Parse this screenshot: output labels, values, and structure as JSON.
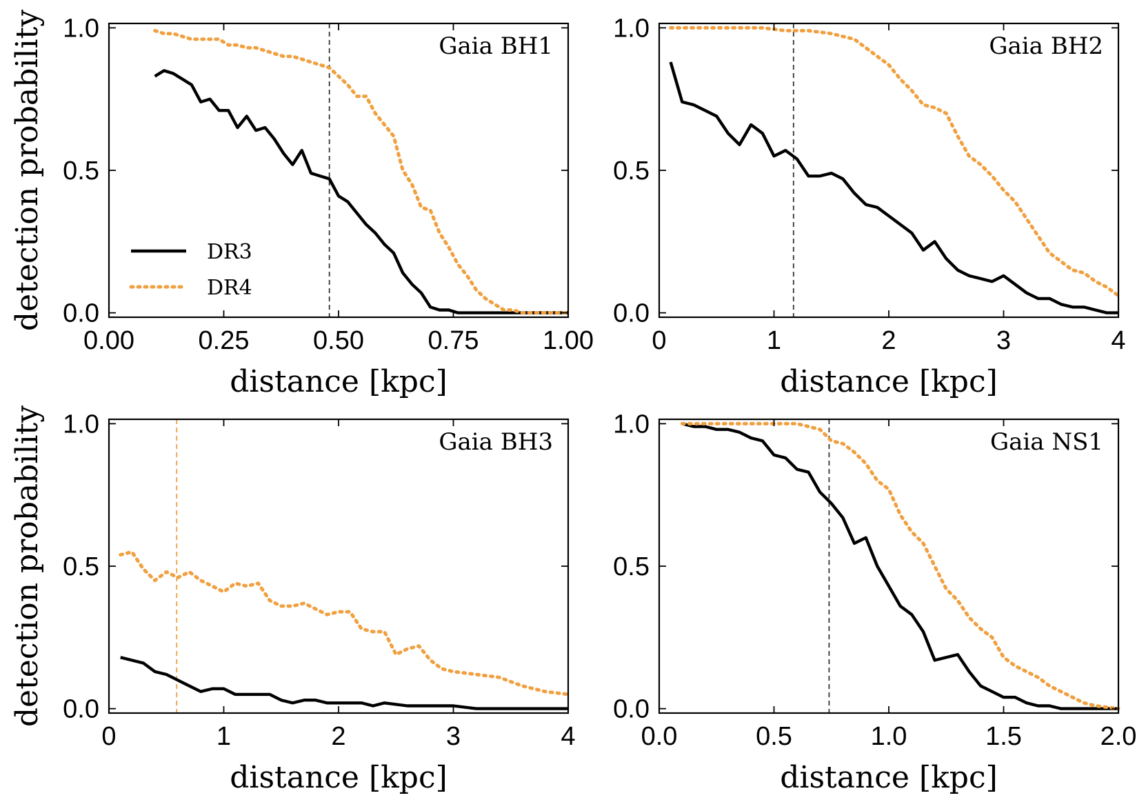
{
  "chart_data": [
    {
      "type": "line",
      "title": "Gaia BH1",
      "xlabel": "distance [kpc]",
      "ylabel": "detection probability",
      "xlim": [
        0,
        1
      ],
      "ylim": [
        0,
        1
      ],
      "xticks": [
        "0.00",
        "0.25",
        "0.50",
        "0.75",
        "1.00"
      ],
      "yticks": [
        "0.0",
        "0.5",
        "1.0"
      ],
      "vline": {
        "x": 0.48,
        "color": "#333333"
      },
      "legend": {
        "position": "center-left",
        "entries": [
          "DR3",
          "DR4"
        ]
      },
      "series": [
        {
          "name": "DR3",
          "color": "#000000",
          "style": "solid",
          "x": [
            0.1,
            0.12,
            0.14,
            0.16,
            0.18,
            0.2,
            0.22,
            0.24,
            0.26,
            0.28,
            0.3,
            0.32,
            0.34,
            0.36,
            0.38,
            0.4,
            0.42,
            0.44,
            0.46,
            0.48,
            0.5,
            0.52,
            0.54,
            0.56,
            0.58,
            0.6,
            0.62,
            0.64,
            0.66,
            0.68,
            0.7,
            0.72,
            0.74,
            0.76,
            0.78,
            0.8,
            0.85,
            0.9,
            0.95,
            1.0
          ],
          "y": [
            0.83,
            0.85,
            0.84,
            0.82,
            0.8,
            0.74,
            0.75,
            0.71,
            0.71,
            0.65,
            0.69,
            0.64,
            0.65,
            0.61,
            0.56,
            0.52,
            0.57,
            0.49,
            0.48,
            0.47,
            0.41,
            0.39,
            0.35,
            0.31,
            0.28,
            0.24,
            0.21,
            0.14,
            0.1,
            0.07,
            0.02,
            0.01,
            0.01,
            0.0,
            0.0,
            0.0,
            0.0,
            0.0,
            0.0,
            0.0
          ]
        },
        {
          "name": "DR4",
          "color": "#f0a040",
          "style": "dotted",
          "x": [
            0.1,
            0.12,
            0.14,
            0.16,
            0.18,
            0.2,
            0.22,
            0.24,
            0.26,
            0.28,
            0.3,
            0.32,
            0.34,
            0.36,
            0.38,
            0.4,
            0.42,
            0.44,
            0.46,
            0.48,
            0.5,
            0.52,
            0.54,
            0.56,
            0.58,
            0.6,
            0.62,
            0.64,
            0.66,
            0.68,
            0.7,
            0.72,
            0.74,
            0.76,
            0.78,
            0.8,
            0.82,
            0.84,
            0.86,
            0.88,
            0.9,
            0.95,
            1.0
          ],
          "y": [
            0.99,
            0.98,
            0.98,
            0.97,
            0.96,
            0.96,
            0.96,
            0.96,
            0.94,
            0.94,
            0.93,
            0.93,
            0.92,
            0.91,
            0.9,
            0.9,
            0.89,
            0.88,
            0.87,
            0.86,
            0.83,
            0.8,
            0.76,
            0.76,
            0.7,
            0.66,
            0.62,
            0.5,
            0.45,
            0.37,
            0.36,
            0.28,
            0.23,
            0.17,
            0.13,
            0.08,
            0.05,
            0.03,
            0.01,
            0.01,
            0.0,
            0.0,
            0.0
          ]
        }
      ]
    },
    {
      "type": "line",
      "title": "Gaia BH2",
      "xlabel": "distance [kpc]",
      "ylabel": "",
      "xlim": [
        0,
        4
      ],
      "ylim": [
        0,
        1
      ],
      "xticks": [
        "0",
        "1",
        "2",
        "3",
        "4"
      ],
      "yticks": [
        "0.0",
        "0.5",
        "1.0"
      ],
      "vline": {
        "x": 1.17,
        "color": "#333333"
      },
      "series": [
        {
          "name": "DR3",
          "color": "#000000",
          "style": "solid",
          "x": [
            0.1,
            0.2,
            0.3,
            0.4,
            0.5,
            0.6,
            0.7,
            0.8,
            0.9,
            1.0,
            1.1,
            1.2,
            1.3,
            1.4,
            1.5,
            1.6,
            1.7,
            1.8,
            1.9,
            2.0,
            2.1,
            2.2,
            2.3,
            2.4,
            2.5,
            2.6,
            2.7,
            2.8,
            2.9,
            3.0,
            3.1,
            3.2,
            3.3,
            3.4,
            3.5,
            3.6,
            3.7,
            3.8,
            3.9,
            4.0
          ],
          "y": [
            0.88,
            0.74,
            0.73,
            0.71,
            0.69,
            0.63,
            0.59,
            0.66,
            0.63,
            0.55,
            0.57,
            0.54,
            0.48,
            0.48,
            0.49,
            0.47,
            0.42,
            0.38,
            0.37,
            0.34,
            0.31,
            0.28,
            0.22,
            0.25,
            0.19,
            0.15,
            0.13,
            0.12,
            0.11,
            0.13,
            0.1,
            0.07,
            0.05,
            0.05,
            0.03,
            0.02,
            0.02,
            0.01,
            0.0,
            0.0
          ]
        },
        {
          "name": "DR4",
          "color": "#f0a040",
          "style": "dotted",
          "x": [
            0.1,
            0.3,
            0.5,
            0.7,
            0.9,
            1.1,
            1.3,
            1.5,
            1.6,
            1.7,
            1.8,
            1.9,
            2.0,
            2.1,
            2.2,
            2.3,
            2.4,
            2.5,
            2.6,
            2.7,
            2.8,
            2.9,
            3.0,
            3.1,
            3.2,
            3.3,
            3.4,
            3.5,
            3.6,
            3.7,
            3.8,
            3.9,
            4.0
          ],
          "y": [
            1.0,
            1.0,
            1.0,
            1.0,
            1.0,
            0.99,
            0.99,
            0.98,
            0.97,
            0.96,
            0.93,
            0.9,
            0.87,
            0.82,
            0.78,
            0.73,
            0.72,
            0.7,
            0.62,
            0.55,
            0.52,
            0.48,
            0.43,
            0.39,
            0.33,
            0.27,
            0.21,
            0.18,
            0.15,
            0.14,
            0.11,
            0.09,
            0.06
          ]
        }
      ]
    },
    {
      "type": "line",
      "title": "Gaia BH3",
      "xlabel": "distance [kpc]",
      "ylabel": "detection probability",
      "xlim": [
        0,
        4
      ],
      "ylim": [
        0,
        1
      ],
      "xticks": [
        "0",
        "1",
        "2",
        "3",
        "4"
      ],
      "yticks": [
        "0.0",
        "0.5",
        "1.0"
      ],
      "vline": {
        "x": 0.59,
        "color": "#f0a040"
      },
      "series": [
        {
          "name": "DR3",
          "color": "#000000",
          "style": "solid",
          "x": [
            0.1,
            0.2,
            0.3,
            0.4,
            0.5,
            0.6,
            0.7,
            0.8,
            0.9,
            1.0,
            1.1,
            1.2,
            1.3,
            1.4,
            1.5,
            1.6,
            1.7,
            1.8,
            1.9,
            2.0,
            2.1,
            2.2,
            2.3,
            2.4,
            2.6,
            2.8,
            3.0,
            3.2,
            3.4,
            3.6,
            3.8,
            4.0
          ],
          "y": [
            0.18,
            0.17,
            0.16,
            0.13,
            0.12,
            0.1,
            0.08,
            0.06,
            0.07,
            0.07,
            0.05,
            0.05,
            0.05,
            0.05,
            0.03,
            0.02,
            0.03,
            0.03,
            0.02,
            0.02,
            0.02,
            0.02,
            0.01,
            0.02,
            0.01,
            0.01,
            0.01,
            0.0,
            0.0,
            0.0,
            0.0,
            0.0
          ]
        },
        {
          "name": "DR4",
          "color": "#f0a040",
          "style": "dotted",
          "x": [
            0.1,
            0.2,
            0.3,
            0.4,
            0.5,
            0.6,
            0.7,
            0.8,
            0.9,
            1.0,
            1.1,
            1.2,
            1.3,
            1.4,
            1.5,
            1.6,
            1.7,
            1.8,
            1.9,
            2.0,
            2.1,
            2.2,
            2.3,
            2.4,
            2.5,
            2.6,
            2.7,
            2.8,
            2.9,
            3.0,
            3.2,
            3.4,
            3.6,
            3.8,
            4.0
          ],
          "y": [
            0.54,
            0.55,
            0.49,
            0.45,
            0.48,
            0.46,
            0.48,
            0.45,
            0.43,
            0.41,
            0.44,
            0.43,
            0.44,
            0.38,
            0.36,
            0.36,
            0.37,
            0.35,
            0.33,
            0.34,
            0.34,
            0.28,
            0.27,
            0.27,
            0.19,
            0.21,
            0.22,
            0.17,
            0.14,
            0.13,
            0.12,
            0.11,
            0.08,
            0.06,
            0.05
          ]
        }
      ]
    },
    {
      "type": "line",
      "title": "Gaia NS1",
      "xlabel": "distance [kpc]",
      "ylabel": "",
      "xlim": [
        0,
        2
      ],
      "ylim": [
        0,
        1
      ],
      "xticks": [
        "0.0",
        "0.5",
        "1.0",
        "1.5",
        "2.0"
      ],
      "yticks": [
        "0.0",
        "0.5",
        "1.0"
      ],
      "vline": {
        "x": 0.74,
        "color": "#333333"
      },
      "series": [
        {
          "name": "DR3",
          "color": "#000000",
          "style": "solid",
          "x": [
            0.1,
            0.15,
            0.2,
            0.25,
            0.3,
            0.35,
            0.4,
            0.45,
            0.5,
            0.55,
            0.6,
            0.65,
            0.7,
            0.75,
            0.8,
            0.85,
            0.9,
            0.95,
            1.0,
            1.05,
            1.1,
            1.15,
            1.2,
            1.25,
            1.3,
            1.35,
            1.4,
            1.45,
            1.5,
            1.55,
            1.6,
            1.65,
            1.7,
            1.75,
            1.8,
            1.9,
            2.0
          ],
          "y": [
            1.0,
            0.99,
            0.99,
            0.98,
            0.98,
            0.97,
            0.95,
            0.94,
            0.89,
            0.88,
            0.84,
            0.83,
            0.76,
            0.72,
            0.67,
            0.58,
            0.6,
            0.5,
            0.43,
            0.36,
            0.33,
            0.27,
            0.17,
            0.18,
            0.19,
            0.13,
            0.08,
            0.06,
            0.04,
            0.04,
            0.02,
            0.01,
            0.01,
            0.0,
            0.0,
            0.0,
            0.0
          ]
        },
        {
          "name": "DR4",
          "color": "#f0a040",
          "style": "dotted",
          "x": [
            0.1,
            0.2,
            0.3,
            0.4,
            0.5,
            0.6,
            0.65,
            0.7,
            0.75,
            0.8,
            0.85,
            0.9,
            0.95,
            1.0,
            1.05,
            1.1,
            1.15,
            1.2,
            1.25,
            1.3,
            1.35,
            1.4,
            1.45,
            1.5,
            1.55,
            1.6,
            1.65,
            1.7,
            1.75,
            1.8,
            1.85,
            1.9,
            2.0
          ],
          "y": [
            1.0,
            1.0,
            1.0,
            1.0,
            1.0,
            1.0,
            0.99,
            0.98,
            0.94,
            0.93,
            0.9,
            0.86,
            0.8,
            0.77,
            0.68,
            0.62,
            0.58,
            0.5,
            0.42,
            0.38,
            0.32,
            0.28,
            0.25,
            0.18,
            0.15,
            0.13,
            0.11,
            0.08,
            0.06,
            0.04,
            0.02,
            0.01,
            0.0
          ]
        }
      ]
    }
  ]
}
